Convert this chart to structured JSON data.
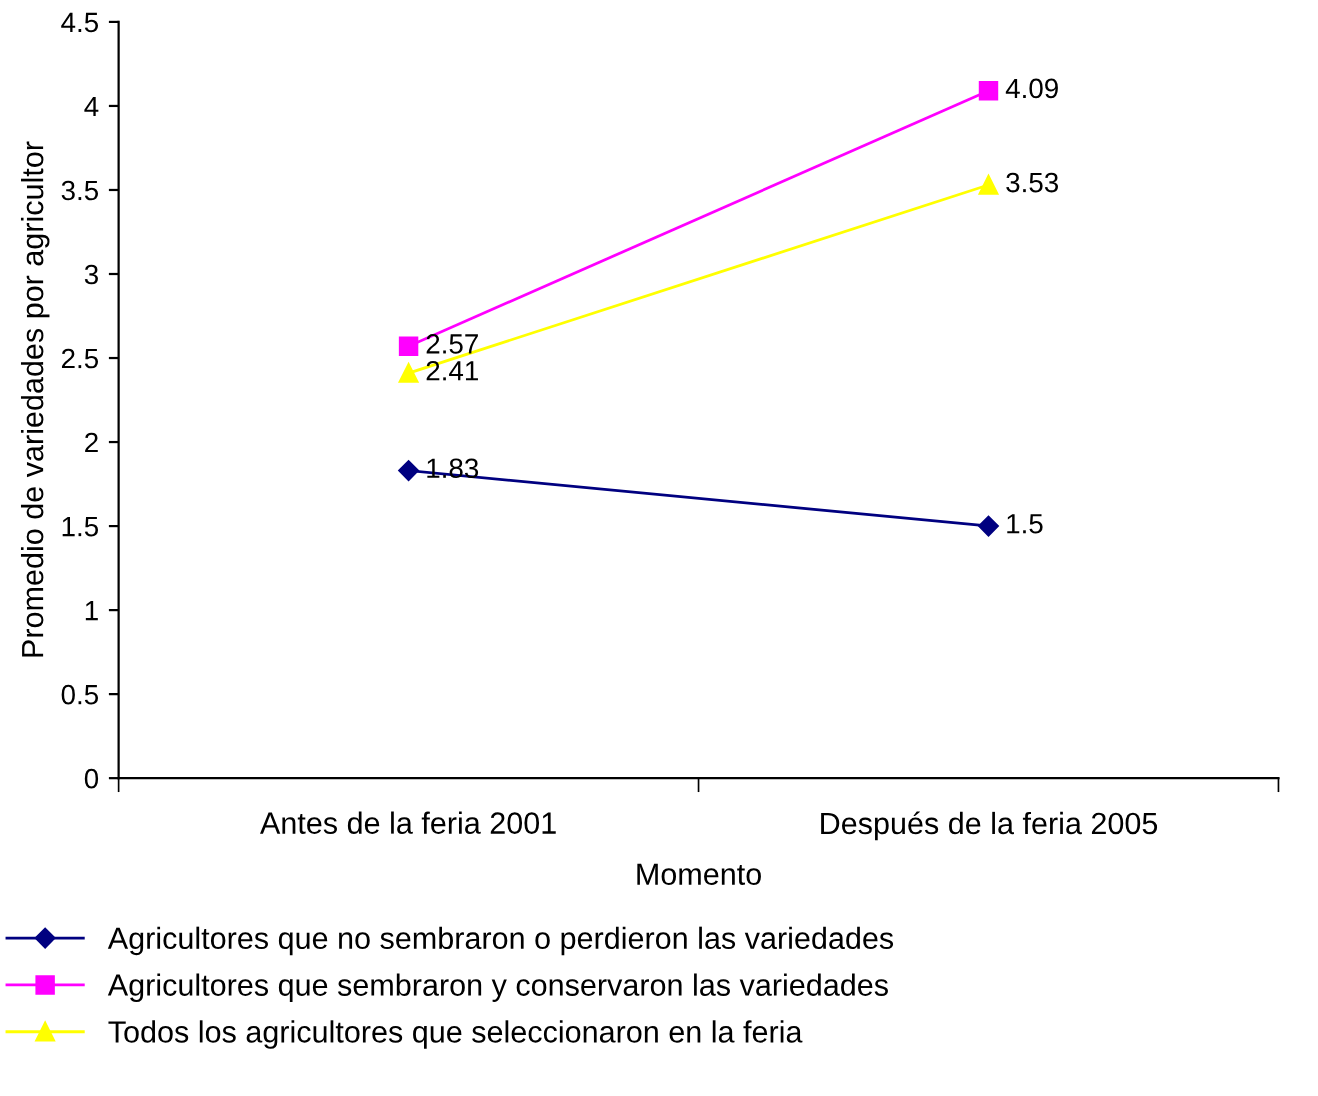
{
  "chart_data": {
    "type": "line",
    "xlabel": "Momento",
    "ylabel": "Promedio de variedades por agricultor",
    "categories": [
      "Antes de la feria 2001",
      "Después de la feria 2005"
    ],
    "series": [
      {
        "name": "Agricultores que no sembraron o perdieron las variedades",
        "color": "#000080",
        "values": [
          1.83,
          1.5
        ],
        "marker": "diamond"
      },
      {
        "name": "Agricultores que sembraron y conservaron las variedades",
        "color": "#ff00ff",
        "values": [
          2.57,
          4.09
        ],
        "marker": "square"
      },
      {
        "name": "Todos los agricultores que seleccionaron en la feria",
        "color": "#ffff00",
        "values": [
          2.41,
          3.53
        ],
        "marker": "triangle"
      }
    ],
    "ylim": [
      0,
      4.5
    ],
    "yticks": [
      0,
      0.5,
      1,
      1.5,
      2,
      2.5,
      3,
      3.5,
      4,
      4.5
    ],
    "data_labels": true,
    "legend": "bottom",
    "grid": false
  }
}
